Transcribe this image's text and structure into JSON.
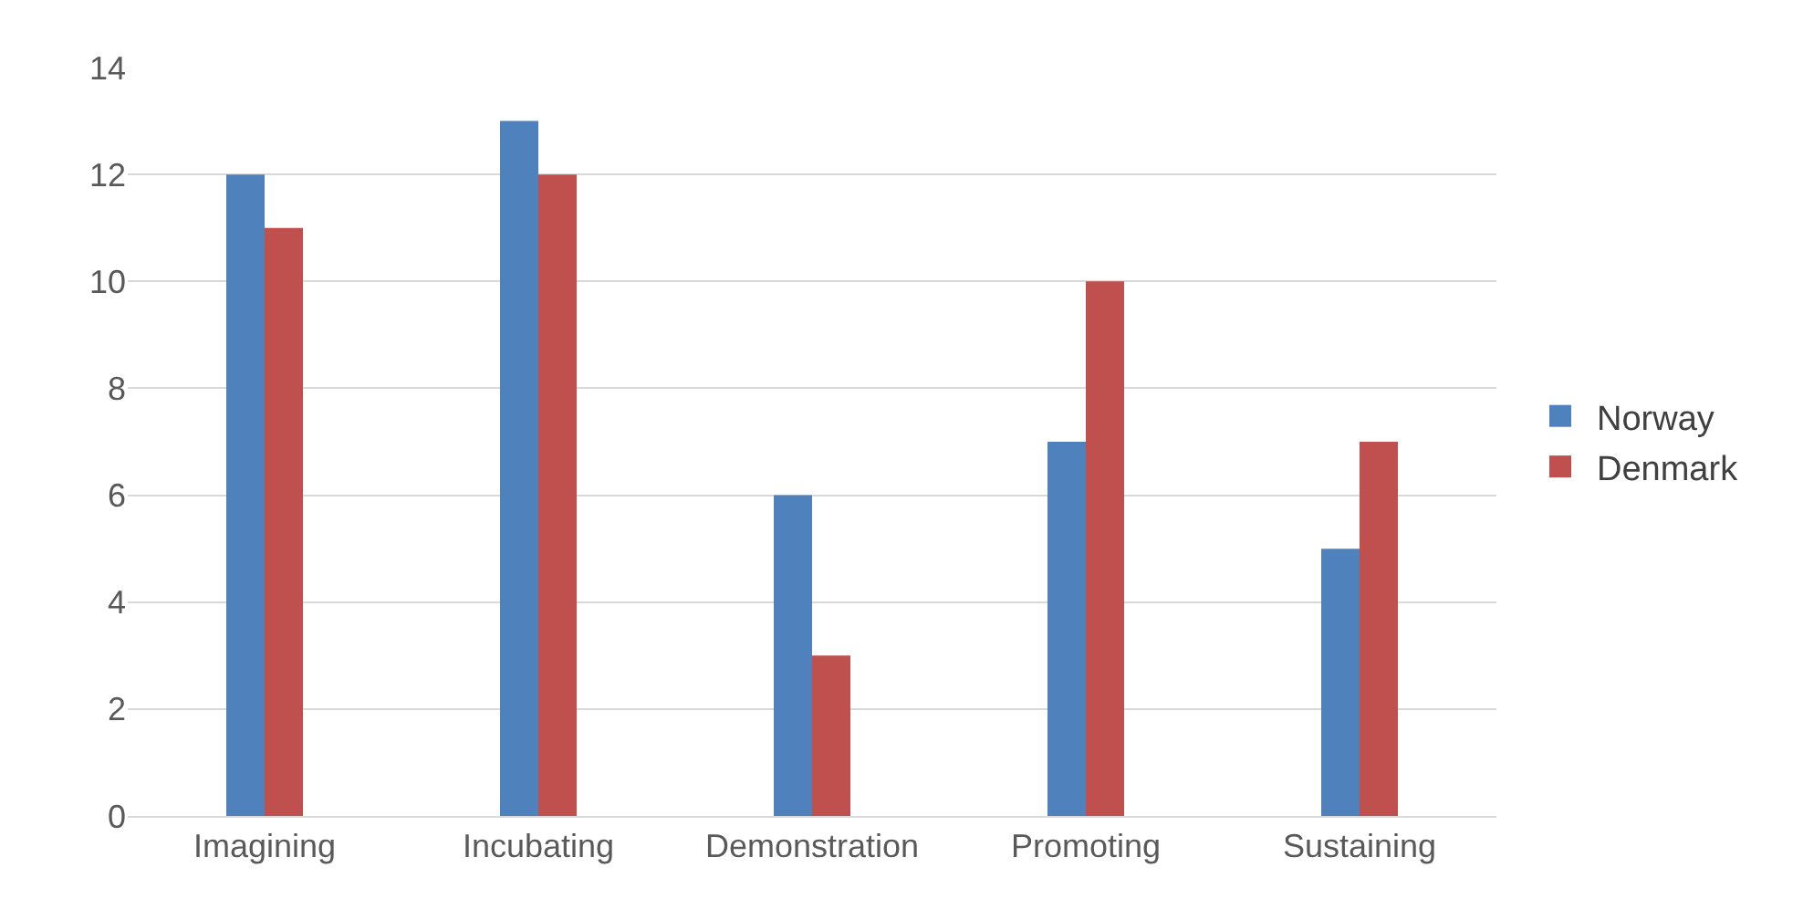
{
  "chart_data": {
    "type": "bar",
    "categories": [
      "Imagining",
      "Incubating",
      "Demonstration",
      "Promoting",
      "Sustaining"
    ],
    "series": [
      {
        "name": "Norway",
        "color": "#4f81bd",
        "values": [
          12,
          13,
          6,
          7,
          5
        ]
      },
      {
        "name": "Denmark",
        "color": "#c0504d",
        "values": [
          11,
          12,
          3,
          10,
          7
        ]
      }
    ],
    "ylim": [
      0,
      14
    ],
    "yticks": [
      0,
      2,
      4,
      6,
      8,
      10,
      12,
      14
    ],
    "grid": "y",
    "legend": "right"
  }
}
